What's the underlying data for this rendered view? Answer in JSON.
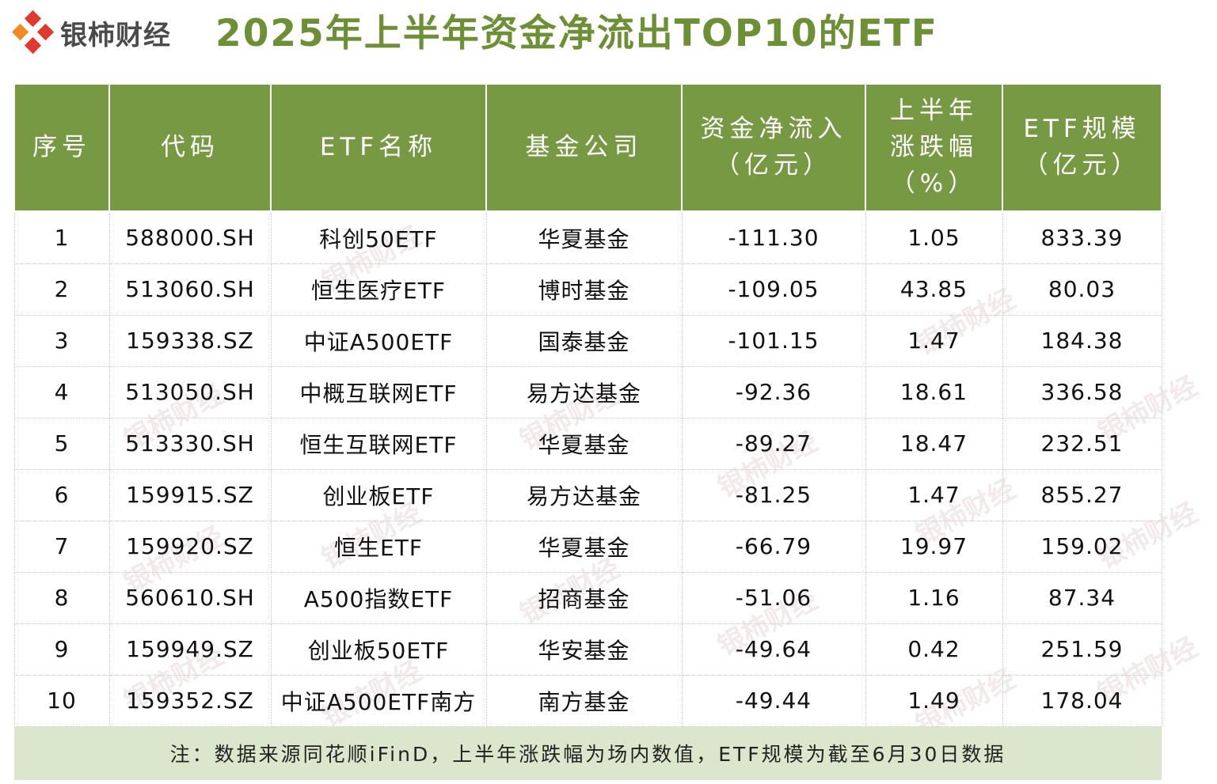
{
  "brand": {
    "name": "银柿财经",
    "watermark": "银柿财经",
    "colors": [
      "#e03a2f",
      "#f08a24"
    ]
  },
  "title": "2025年上半年资金净流出TOP10的ETF",
  "table": {
    "headers": [
      {
        "lines": [
          "序号"
        ]
      },
      {
        "lines": [
          "代码"
        ]
      },
      {
        "lines": [
          "ETF名称"
        ]
      },
      {
        "lines": [
          "基金公司"
        ]
      },
      {
        "lines": [
          "资金净流入",
          "（亿元）"
        ]
      },
      {
        "lines": [
          "上半年",
          "涨跌幅",
          "（%）"
        ]
      },
      {
        "lines": [
          "ETF规模",
          "（亿元）"
        ]
      }
    ],
    "rows": [
      [
        "1",
        "588000.SH",
        "科创50ETF",
        "华夏基金",
        "-111.30",
        "1.05",
        "833.39"
      ],
      [
        "2",
        "513060.SH",
        "恒生医疗ETF",
        "博时基金",
        "-109.05",
        "43.85",
        "80.03"
      ],
      [
        "3",
        "159338.SZ",
        "中证A500ETF",
        "国泰基金",
        "-101.15",
        "1.47",
        "184.38"
      ],
      [
        "4",
        "513050.SH",
        "中概互联网ETF",
        "易方达基金",
        "-92.36",
        "18.61",
        "336.58"
      ],
      [
        "5",
        "513330.SH",
        "恒生互联网ETF",
        "华夏基金",
        "-89.27",
        "18.47",
        "232.51"
      ],
      [
        "6",
        "159915.SZ",
        "创业板ETF",
        "易方达基金",
        "-81.25",
        "1.47",
        "855.27"
      ],
      [
        "7",
        "159920.SZ",
        "恒生ETF",
        "华夏基金",
        "-66.79",
        "19.97",
        "159.02"
      ],
      [
        "8",
        "560610.SH",
        "A500指数ETF",
        "招商基金",
        "-51.06",
        "1.16",
        "87.34"
      ],
      [
        "9",
        "159949.SZ",
        "创业板50ETF",
        "华安基金",
        "-49.64",
        "0.42",
        "251.59"
      ],
      [
        "10",
        "159352.SZ",
        "中证A500ETF南方",
        "南方基金",
        "-49.44",
        "1.49",
        "178.04"
      ]
    ],
    "note": "注：数据来源同花顺iFinD，上半年涨跌幅为场内数值，ETF规模为截至6月30日数据"
  }
}
